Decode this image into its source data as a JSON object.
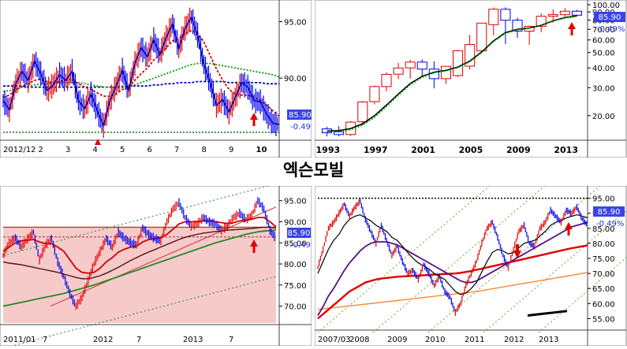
{
  "page": {
    "title": "엑슨모빌"
  },
  "price": {
    "last": "85.90",
    "change": "-0.49%"
  },
  "colors": {
    "price_box": "#3a44e6",
    "change_text": "#2233dd",
    "up_bar": "#e00000",
    "down_bar": "#0000ee"
  },
  "chart_data": [
    {
      "id": "daily",
      "type": "line",
      "title": "",
      "xlabel": "",
      "ylabel": "",
      "x_ticks": [
        "2012/12",
        "2",
        "3",
        "4",
        "5",
        "6",
        "7",
        "8",
        "9",
        "10"
      ],
      "y_ticks": [
        "95.00",
        "90.00"
      ],
      "ylim": [
        84.5,
        96.5
      ],
      "grid": false,
      "series": [
        {
          "values": [
            88.0,
            87.2,
            89.5,
            90.6,
            89.8,
            91.5,
            90.4,
            88.9,
            89.4,
            90.3,
            89.8,
            90.6,
            88.0,
            87.3,
            88.6,
            87.1,
            85.8,
            88.0,
            89.3,
            90.7,
            88.9,
            91.3,
            92.7,
            91.9,
            93.4,
            92.1,
            93.6,
            94.8,
            92.6,
            94.4,
            95.4,
            93.8,
            91.2,
            89.6,
            87.6,
            88.1,
            87.0,
            88.3,
            89.6,
            89.2,
            88.0,
            87.9,
            86.8,
            86.0,
            85.9
          ]
        },
        {
          "values": [
            88.3,
            88.5,
            88.9,
            89.3,
            89.5,
            89.8,
            89.9,
            89.7,
            89.6,
            89.7,
            89.8,
            89.9,
            89.5,
            89.2,
            89.0,
            88.7,
            88.4,
            88.4,
            88.6,
            89.0,
            89.2,
            89.8,
            90.4,
            90.9,
            91.6,
            92.1,
            92.7,
            93.3,
            93.5,
            93.9,
            94.2,
            94.0,
            93.2,
            92.0,
            90.8,
            89.8,
            89.0,
            88.6,
            88.5,
            88.5,
            88.3,
            88.0,
            87.6,
            87.1,
            86.6
          ]
        },
        {
          "values": [
            88.8,
            88.9,
            89.0,
            89.2,
            89.3,
            89.4,
            89.5,
            89.5,
            89.5,
            89.6,
            89.6,
            89.6,
            89.6,
            89.5,
            89.4,
            89.3,
            89.2,
            89.2,
            89.2,
            89.3,
            89.3,
            89.4,
            89.6,
            89.8,
            90.0,
            90.2,
            90.4,
            90.6,
            90.8,
            91.0,
            91.2,
            91.3,
            91.3,
            91.3,
            91.2,
            91.1,
            91.0,
            90.9,
            90.8,
            90.7,
            90.6,
            90.5,
            90.4,
            90.3,
            90.1
          ]
        },
        {
          "values": [
            89.3,
            89.3,
            89.3,
            89.3,
            89.2,
            89.2,
            89.2,
            89.2,
            89.2,
            89.2,
            89.2,
            89.2,
            89.2,
            89.2,
            89.2,
            89.2,
            89.2,
            89.2,
            89.2,
            89.2,
            89.3,
            89.3,
            89.3,
            89.3,
            89.4,
            89.4,
            89.5,
            89.5,
            89.6,
            89.6,
            89.6,
            89.7,
            89.7,
            89.7,
            89.7,
            89.7,
            89.6,
            89.6,
            89.6,
            89.6,
            89.6,
            89.6,
            89.5,
            89.5,
            89.5
          ]
        }
      ],
      "support_level": 85.2
    },
    {
      "id": "yearly",
      "type": "bar",
      "title": "",
      "xlabel": "",
      "ylabel": "",
      "x_ticks": [
        "1993",
        "1997",
        "2001",
        "2005",
        "2009",
        "2013"
      ],
      "y_ticks": [
        "100.00",
        "90.00",
        "80.00",
        "70.00",
        "60.00",
        "50.00",
        "40.00",
        "30.00",
        "20.00"
      ],
      "y_scale": "log",
      "ylim": [
        14,
        100
      ],
      "grid": false,
      "years": [
        1993,
        1994,
        1995,
        1996,
        1997,
        1998,
        1999,
        2000,
        2001,
        2002,
        2003,
        2004,
        2005,
        2006,
        2007,
        2008,
        2009,
        2010,
        2011,
        2012,
        2013,
        2014
      ],
      "open": [
        16.5,
        15.8,
        15.2,
        18.3,
        24.5,
        30.5,
        36.5,
        40.0,
        43.5,
        39.3,
        34.2,
        35.8,
        41.0,
        51.2,
        74.9,
        93.6,
        79.9,
        68.2,
        73.1,
        84.6,
        86.5,
        91.0
      ],
      "high": [
        17.0,
        17.2,
        18.5,
        24.8,
        31.0,
        37.5,
        43.0,
        45.0,
        45.3,
        44.0,
        41.0,
        52.0,
        64.5,
        76.0,
        96.1,
        96.3,
        82.8,
        74.0,
        88.2,
        93.7,
        95.3,
        93.0
      ],
      "low": [
        14.8,
        14.8,
        14.9,
        17.5,
        23.5,
        28.5,
        34.0,
        34.2,
        35.0,
        29.7,
        31.6,
        35.0,
        39.0,
        50.0,
        64.0,
        56.5,
        61.9,
        55.9,
        67.0,
        77.1,
        84.0,
        85.0
      ],
      "close": [
        15.6,
        15.2,
        18.2,
        24.4,
        30.5,
        36.4,
        39.9,
        43.5,
        39.3,
        34.2,
        40.9,
        51.3,
        56.1,
        76.6,
        93.7,
        79.8,
        68.2,
        73.1,
        84.6,
        86.6,
        91.0,
        85.9
      ],
      "series": [
        {
          "values": [
            16.0,
            16.1,
            16.6,
            17.8,
            20.0,
            23.3,
            27.4,
            31.9,
            35.4,
            37.6,
            38.6,
            40.5,
            44.1,
            50.4,
            59.2,
            66.7,
            70.0,
            71.4,
            74.2,
            79.2,
            83.0,
            85.0
          ]
        },
        {
          "values": [
            15.8,
            15.9,
            16.3,
            17.4,
            19.5,
            22.8,
            26.9,
            31.3,
            34.9,
            37.2,
            38.3,
            40.1,
            43.6,
            49.8,
            58.5,
            66.0,
            69.5,
            71.0,
            73.8,
            78.8,
            82.5,
            84.5
          ]
        }
      ]
    },
    {
      "id": "weekly",
      "type": "line",
      "title": "",
      "xlabel": "",
      "ylabel": "",
      "x_ticks": [
        "2011/01",
        "7",
        "2012",
        "7",
        "2013",
        "7"
      ],
      "y_ticks": [
        "95.00",
        "90.00",
        "85.00",
        "80.00",
        "75.00",
        "70.00"
      ],
      "ylim": [
        66,
        97
      ],
      "grid": false,
      "series": [
        {
          "values": [
            82.0,
            85.0,
            86.2,
            84.0,
            85.9,
            87.5,
            81.0,
            84.5,
            86.0,
            80.5,
            77.0,
            73.0,
            70.0,
            72.0,
            76.0,
            80.0,
            83.0,
            86.0,
            84.0,
            87.5,
            86.0,
            85.0,
            84.5,
            88.5,
            87.0,
            86.0,
            85.5,
            90.0,
            93.0,
            94.5,
            91.0,
            89.0,
            89.5,
            91.0,
            90.0,
            89.5,
            88.0,
            89.0,
            91.0,
            92.0,
            90.5,
            91.5,
            95.0,
            93.0,
            88.0,
            86.0
          ]
        },
        {
          "values": [
            83.0,
            84.0,
            85.0,
            85.5,
            85.6,
            85.8,
            85.2,
            84.8,
            84.8,
            84.0,
            83.0,
            81.0,
            79.0,
            78.0,
            77.8,
            78.0,
            79.0,
            80.5,
            81.5,
            82.8,
            83.5,
            84.0,
            84.2,
            85.2,
            85.8,
            86.0,
            86.2,
            87.0,
            88.2,
            89.5,
            90.0,
            90.0,
            90.0,
            90.2,
            90.2,
            90.0,
            89.8,
            89.6,
            89.8,
            90.2,
            90.4,
            90.6,
            91.0,
            91.0,
            90.0,
            88.8
          ]
        },
        {
          "values": [
            80.5,
            80.2,
            80.0,
            79.8,
            79.5,
            79.2,
            78.9,
            78.6,
            78.3,
            78.0,
            77.6,
            77.2,
            76.8,
            76.5,
            76.5,
            76.8,
            77.2,
            77.8,
            78.5,
            79.2,
            80.0,
            80.8,
            81.5,
            82.2,
            82.8,
            83.4,
            84.0,
            84.6,
            85.2,
            85.8,
            86.3,
            86.7,
            87.0,
            87.3,
            87.5,
            87.7,
            87.8,
            88.0,
            88.1,
            88.2,
            88.3,
            88.4,
            88.6,
            88.7,
            88.7,
            88.5
          ]
        },
        {
          "values": [
            70.0,
            70.3,
            70.6,
            70.9,
            71.2,
            71.5,
            71.8,
            72.1,
            72.4,
            72.7,
            73.0,
            73.4,
            73.8,
            74.2,
            74.6,
            75.0,
            75.5,
            76.0,
            76.5,
            77.0,
            77.5,
            78.0,
            78.5,
            79.0,
            79.5,
            80.0,
            80.5,
            81.0,
            81.5,
            82.0,
            82.5,
            83.0,
            83.5,
            84.0,
            84.5,
            85.0,
            85.4,
            85.8,
            86.2,
            86.6,
            87.0,
            87.3,
            87.6,
            87.8,
            87.9,
            88.0
          ]
        }
      ],
      "resistance": 88.7,
      "support": 86.4
    },
    {
      "id": "monthly",
      "type": "line",
      "title": "",
      "xlabel": "",
      "ylabel": "",
      "x_ticks": [
        "2007/03",
        "2008",
        "2009",
        "2010",
        "2011",
        "2012",
        "2013"
      ],
      "y_ticks": [
        "95.00",
        "90.00",
        "85.00",
        "80.00",
        "75.00",
        "70.00",
        "65.00",
        "60.00",
        "55.00"
      ],
      "ylim": [
        53,
        97
      ],
      "grid": false,
      "series": [
        {
          "values": [
            72.0,
            78.0,
            85.0,
            87.0,
            90.0,
            93.0,
            89.0,
            92.0,
            94.0,
            88.0,
            84.0,
            80.0,
            86.0,
            81.0,
            76.0,
            79.0,
            74.0,
            70.0,
            71.0,
            68.0,
            73.0,
            70.0,
            66.0,
            69.0,
            64.0,
            62.0,
            57.0,
            60.0,
            66.0,
            70.0,
            74.0,
            80.0,
            85.0,
            87.0,
            82.0,
            76.0,
            72.0,
            78.0,
            84.0,
            86.0,
            80.0,
            79.0,
            85.0,
            87.0,
            91.0,
            89.0,
            87.0,
            91.0,
            90.0,
            92.0,
            88.0,
            86.0
          ]
        },
        {
          "values": [
            70.0,
            74.0,
            78.0,
            81.0,
            83.0,
            86.0,
            88.0,
            89.0,
            89.5,
            88.5,
            87.5,
            86.0,
            85.0,
            84.0,
            82.0,
            81.0,
            79.0,
            77.0,
            75.0,
            73.5,
            72.5,
            71.5,
            70.0,
            69.0,
            68.0,
            66.0,
            64.0,
            63.0,
            63.5,
            65.0,
            67.0,
            70.5,
            74.0,
            77.0,
            78.0,
            77.5,
            76.5,
            77.0,
            78.5,
            80.0,
            80.5,
            81.0,
            82.5,
            84.0,
            86.0,
            87.0,
            87.5,
            88.5,
            89.0,
            89.5,
            89.0,
            88.5
          ]
        },
        {
          "values": [
            56.0,
            59.0,
            62.5,
            65.0,
            68.0,
            71.0,
            73.5,
            75.5,
            77.5,
            79.0,
            80.0,
            80.5,
            80.5,
            80.5,
            80.0,
            79.5,
            78.5,
            77.5,
            76.5,
            75.5,
            74.5,
            73.5,
            72.5,
            71.5,
            70.5,
            69.5,
            68.5,
            67.5,
            67.0,
            67.0,
            67.5,
            68.5,
            69.5,
            70.5,
            71.5,
            72.5,
            73.5,
            74.5,
            75.5,
            76.5,
            77.5,
            78.5,
            79.5,
            80.5,
            81.5,
            82.5,
            83.5,
            84.5,
            85.5,
            86.0,
            86.5,
            87.0
          ]
        },
        {
          "values": [
            55.0,
            56.5,
            58.0,
            59.5,
            61.0,
            62.5,
            64.0,
            65.0,
            66.0,
            67.0,
            67.5,
            68.0,
            68.3,
            68.5,
            68.7,
            68.9,
            69.0,
            69.1,
            69.2,
            69.3,
            69.4,
            69.5,
            69.6,
            69.7,
            69.8,
            69.9,
            70.0,
            70.2,
            70.5,
            70.8,
            71.2,
            71.6,
            72.0,
            72.4,
            72.8,
            73.2,
            73.6,
            74.0,
            74.4,
            74.8,
            75.2,
            75.6,
            76.0,
            76.4,
            76.8,
            77.2,
            77.6,
            78.0,
            78.4,
            78.7,
            79.0,
            79.3
          ]
        },
        {
          "values": [
            null,
            null,
            null,
            null,
            null,
            null,
            null,
            null,
            null,
            null,
            null,
            null,
            null,
            null,
            null,
            null,
            null,
            null,
            null,
            null,
            null,
            null,
            null,
            null,
            null,
            null,
            null,
            null,
            null,
            null,
            null,
            null,
            null,
            null,
            null,
            null,
            null,
            null,
            null,
            null,
            null,
            null,
            null,
            null,
            null,
            null,
            null,
            null,
            null,
            null,
            null,
            null
          ]
        }
      ],
      "orange_line": [
        58.0,
        58.2,
        58.4,
        58.6,
        58.8,
        59.0,
        59.2,
        59.4,
        59.6,
        59.8,
        60.0,
        60.2,
        60.4,
        60.6,
        60.8,
        61.0,
        61.2,
        61.4,
        61.6,
        61.8,
        62.0,
        62.2,
        62.4,
        62.6,
        62.8,
        63.0,
        63.2,
        63.4,
        63.6,
        63.8,
        64.0,
        64.3,
        64.6,
        64.9,
        65.2,
        65.5,
        65.8,
        66.1,
        66.4,
        66.7,
        67.0,
        67.3,
        67.6,
        67.9,
        68.2,
        68.5,
        68.8,
        69.1,
        69.4,
        69.7,
        70.0,
        70.3
      ],
      "top_level": 95.0
    }
  ]
}
